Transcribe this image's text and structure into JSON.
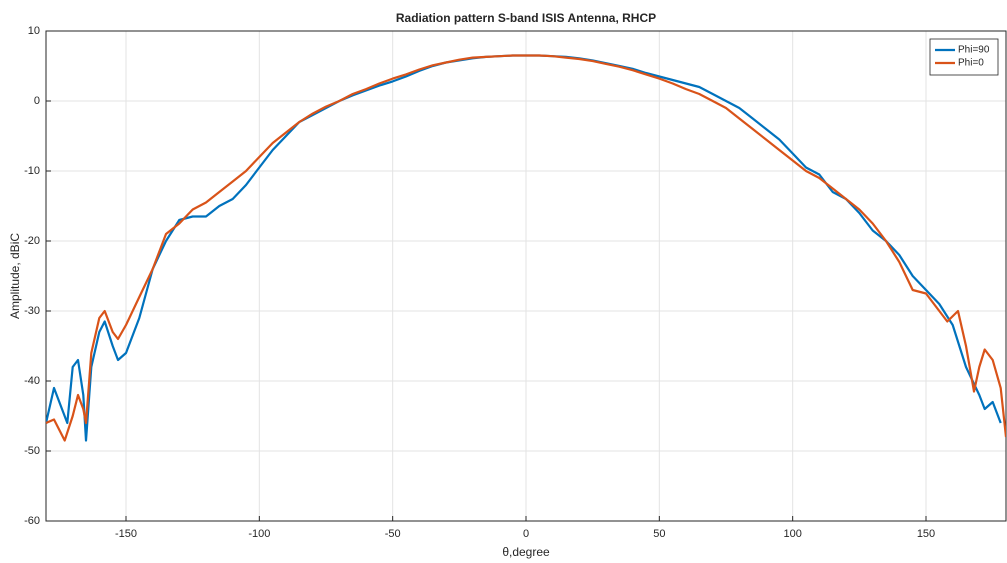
{
  "chart_data": {
    "type": "line",
    "title": "Radiation pattern S-band ISIS Antenna, RHCP",
    "x_label": "θ,degree",
    "y_label": "Amplitude, dBiC",
    "xlim": [
      -180,
      180
    ],
    "ylim": [
      -60,
      10
    ],
    "xticks": [
      -150,
      -100,
      -50,
      0,
      50,
      100,
      150
    ],
    "yticks": [
      -60,
      -50,
      -40,
      -30,
      -20,
      -10,
      0,
      10
    ],
    "grid": true,
    "legend": "upper-right",
    "series": [
      {
        "name": "Phi=90",
        "color": "#0072bd",
        "x": [
          -180,
          -177,
          -172,
          -170,
          -168,
          -166,
          -165,
          -163,
          -160,
          -158,
          -155,
          -153,
          -150,
          -145,
          -140,
          -135,
          -130,
          -125,
          -120,
          -115,
          -110,
          -105,
          -100,
          -95,
          -90,
          -85,
          -80,
          -75,
          -70,
          -65,
          -60,
          -55,
          -50,
          -45,
          -40,
          -35,
          -30,
          -25,
          -20,
          -15,
          -10,
          -5,
          0,
          5,
          10,
          15,
          20,
          25,
          30,
          35,
          40,
          45,
          50,
          55,
          60,
          65,
          70,
          75,
          80,
          85,
          90,
          95,
          100,
          105,
          110,
          115,
          120,
          125,
          130,
          135,
          140,
          145,
          150,
          155,
          160,
          165,
          170,
          172,
          175,
          178
        ],
        "values": [
          -46,
          -41,
          -46,
          -38,
          -37,
          -42,
          -48.5,
          -38,
          -33,
          -31.5,
          -35,
          -37,
          -36,
          -31,
          -24,
          -20,
          -17,
          -16.5,
          -16.5,
          -15,
          -14,
          -12,
          -9.5,
          -7,
          -5,
          -3,
          -2,
          -1,
          0,
          0.8,
          1.5,
          2.2,
          2.8,
          3.5,
          4.3,
          5,
          5.5,
          5.8,
          6.1,
          6.3,
          6.4,
          6.5,
          6.5,
          6.5,
          6.4,
          6.3,
          6.1,
          5.8,
          5.4,
          5,
          4.6,
          4,
          3.5,
          3,
          2.5,
          2,
          1,
          0,
          -1,
          -2.5,
          -4,
          -5.5,
          -7.5,
          -9.5,
          -10.5,
          -13,
          -14,
          -16,
          -18.5,
          -20,
          -22,
          -25,
          -27,
          -29,
          -32,
          -38,
          -42,
          -44,
          -43,
          -46
        ]
      },
      {
        "name": "Phi=0",
        "color": "#d95319",
        "x": [
          -180,
          -177,
          -173,
          -170,
          -168,
          -166,
          -165,
          -163,
          -160,
          -158,
          -155,
          -153,
          -150,
          -145,
          -140,
          -135,
          -130,
          -125,
          -120,
          -115,
          -110,
          -105,
          -100,
          -95,
          -90,
          -85,
          -80,
          -75,
          -70,
          -65,
          -60,
          -55,
          -50,
          -45,
          -40,
          -35,
          -30,
          -25,
          -20,
          -15,
          -10,
          -5,
          0,
          5,
          10,
          15,
          20,
          25,
          30,
          35,
          40,
          45,
          50,
          55,
          60,
          65,
          70,
          75,
          80,
          85,
          90,
          95,
          100,
          105,
          110,
          115,
          120,
          125,
          130,
          135,
          140,
          145,
          150,
          155,
          158,
          162,
          165,
          168,
          170,
          172,
          175,
          178,
          180
        ],
        "values": [
          -46,
          -45.5,
          -48.5,
          -45,
          -42,
          -44,
          -46,
          -36,
          -31,
          -30,
          -33,
          -34,
          -32,
          -28,
          -24,
          -19,
          -17.5,
          -15.5,
          -14.5,
          -13,
          -11.5,
          -10,
          -8,
          -6,
          -4.5,
          -3,
          -1.8,
          -0.8,
          0,
          1,
          1.7,
          2.5,
          3.2,
          3.8,
          4.5,
          5.1,
          5.5,
          5.9,
          6.2,
          6.3,
          6.4,
          6.5,
          6.5,
          6.5,
          6.4,
          6.2,
          6,
          5.7,
          5.3,
          4.9,
          4.4,
          3.8,
          3.2,
          2.5,
          1.7,
          1,
          0,
          -1,
          -2.5,
          -4,
          -5.5,
          -7,
          -8.5,
          -10,
          -11,
          -12.5,
          -14,
          -15.5,
          -17.5,
          -20,
          -23,
          -27,
          -27.5,
          -30,
          -31.5,
          -30,
          -35,
          -41.5,
          -38,
          -35.5,
          -37,
          -41,
          -48
        ]
      }
    ]
  }
}
